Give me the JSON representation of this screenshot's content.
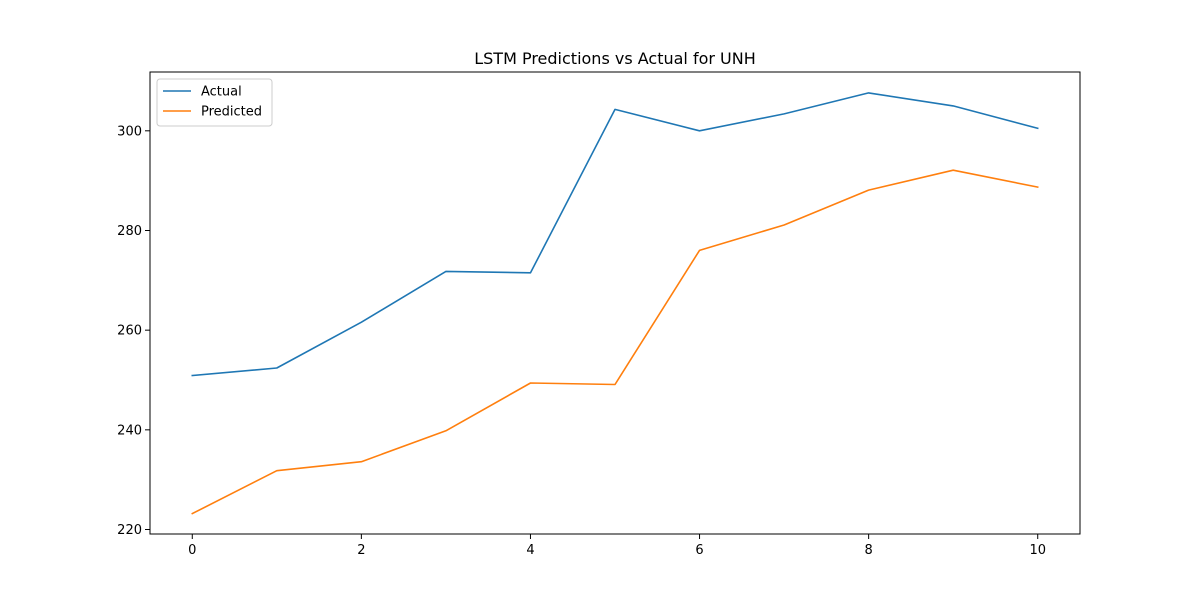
{
  "chart_data": {
    "type": "line",
    "title": "LSTM Predictions vs Actual for UNH",
    "xlabel": "",
    "ylabel": "",
    "x": [
      0,
      1,
      2,
      3,
      4,
      5,
      6,
      7,
      8,
      9,
      10
    ],
    "xlim": [
      -0.5,
      10.5
    ],
    "ylim": [
      219.1,
      311.8
    ],
    "x_ticks": [
      0,
      2,
      4,
      6,
      8,
      10
    ],
    "y_ticks": [
      220,
      240,
      260,
      280,
      300
    ],
    "grid": false,
    "legend_position": "upper-left",
    "series": [
      {
        "name": "Actual",
        "color": "#1f77b4",
        "values": [
          250.9,
          252.4,
          261.6,
          271.8,
          271.5,
          304.3,
          300.0,
          303.4,
          307.6,
          305.0,
          300.5
        ]
      },
      {
        "name": "Predicted",
        "color": "#ff7f0e",
        "values": [
          223.2,
          231.8,
          233.6,
          239.8,
          249.4,
          249.1,
          276.0,
          281.1,
          288.1,
          292.1,
          288.7
        ]
      }
    ]
  }
}
